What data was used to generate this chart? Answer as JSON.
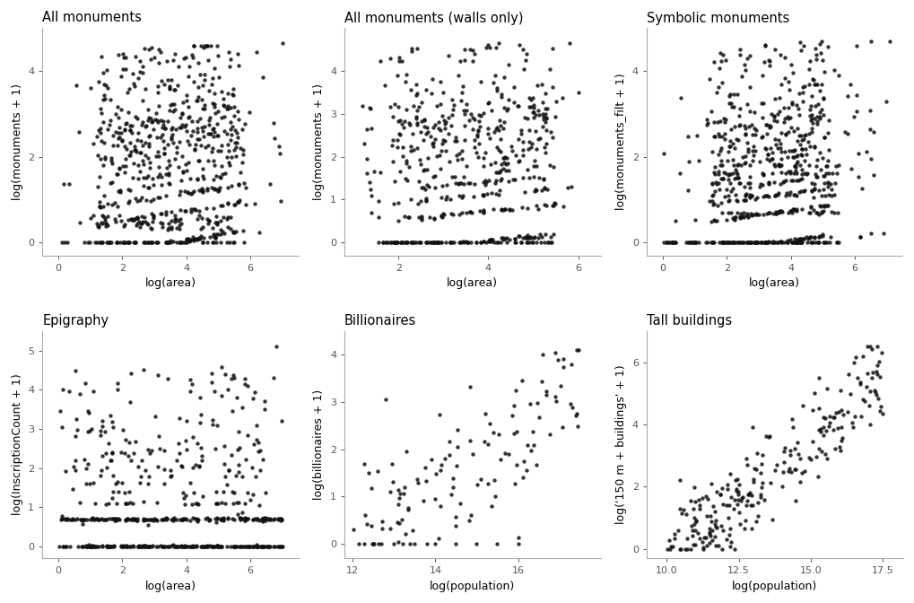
{
  "subplots": [
    {
      "title": "All monuments",
      "xlabel": "log(area)",
      "ylabel": "log(monuments + 1)",
      "xlim": [
        -0.5,
        7.5
      ],
      "ylim": [
        -0.3,
        5.0
      ],
      "xticks": [
        0,
        2,
        4,
        6
      ],
      "yticks": [
        0,
        2,
        4
      ],
      "n_points": 700,
      "x_range": [
        0.0,
        7.0
      ],
      "y_range": [
        0.0,
        4.6
      ],
      "pattern": "monuments"
    },
    {
      "title": "All monuments (walls only)",
      "xlabel": "log(area)",
      "ylabel": "log(monuments + 1)",
      "xlim": [
        0.8,
        6.5
      ],
      "ylim": [
        -0.3,
        5.0
      ],
      "xticks": [
        2,
        4,
        6
      ],
      "yticks": [
        0,
        1,
        2,
        3,
        4
      ],
      "n_points": 550,
      "x_range": [
        1.2,
        6.1
      ],
      "y_range": [
        0.0,
        4.7
      ],
      "pattern": "walls"
    },
    {
      "title": "Symbolic monuments",
      "xlabel": "log(area)",
      "ylabel": "log(monuments_filt + 1)",
      "xlim": [
        -0.5,
        7.5
      ],
      "ylim": [
        -0.3,
        5.0
      ],
      "xticks": [
        0,
        2,
        4,
        6
      ],
      "yticks": [
        0,
        2,
        4
      ],
      "n_points": 700,
      "x_range": [
        0.0,
        7.0
      ],
      "y_range": [
        0.0,
        4.7
      ],
      "pattern": "symbolic"
    },
    {
      "title": "Epigraphy",
      "xlabel": "log(area)",
      "ylabel": "log(InscriptionCount + 1)",
      "xlim": [
        -0.5,
        7.5
      ],
      "ylim": [
        -0.3,
        5.5
      ],
      "xticks": [
        0,
        2,
        4,
        6
      ],
      "yticks": [
        0,
        1,
        2,
        3,
        4,
        5
      ],
      "n_points": 600,
      "x_range": [
        0.0,
        7.0
      ],
      "y_range": [
        0.0,
        5.1
      ],
      "pattern": "epigraphy"
    },
    {
      "title": "Billionaires",
      "xlabel": "log(population)",
      "ylabel": "log(billionaires + 1)",
      "xlim": [
        11.8,
        18.0
      ],
      "ylim": [
        -0.3,
        4.5
      ],
      "xticks": [
        12,
        14,
        16
      ],
      "yticks": [
        0,
        1,
        2,
        3,
        4
      ],
      "n_points": 120,
      "x_range": [
        12.0,
        17.5
      ],
      "y_range": [
        0.0,
        4.1
      ],
      "pattern": "billionaires"
    },
    {
      "title": "Tall buildings",
      "xlabel": "log(population)",
      "ylabel": "log('150 m + buildings' + 1)",
      "xlim": [
        9.3,
        18.2
      ],
      "ylim": [
        -0.3,
        7.0
      ],
      "xticks": [
        10.0,
        12.5,
        15.0,
        17.5
      ],
      "yticks": [
        0,
        2,
        4,
        6
      ],
      "n_points": 220,
      "x_range": [
        10.0,
        17.5
      ],
      "y_range": [
        0.0,
        6.5
      ],
      "pattern": "tall_buildings"
    }
  ],
  "point_color": "#111111",
  "point_size": 10,
  "point_alpha": 0.85,
  "background_color": "#ffffff",
  "title_fontsize": 10.5,
  "label_fontsize": 9,
  "tick_fontsize": 8,
  "spine_color": "#aaaaaa"
}
